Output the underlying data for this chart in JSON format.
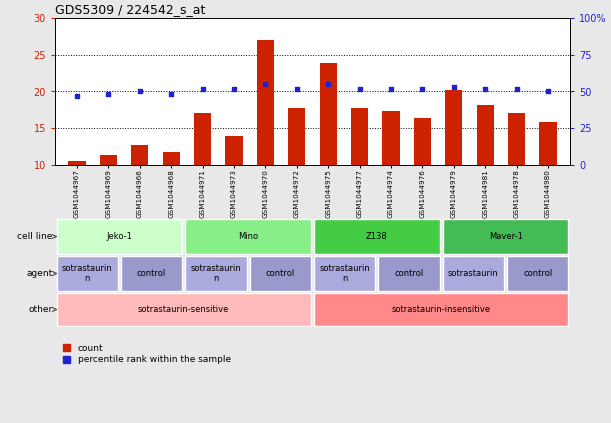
{
  "title": "GDS5309 / 224542_s_at",
  "samples": [
    "GSM1044967",
    "GSM1044969",
    "GSM1044966",
    "GSM1044968",
    "GSM1044971",
    "GSM1044973",
    "GSM1044970",
    "GSM1044972",
    "GSM1044975",
    "GSM1044977",
    "GSM1044974",
    "GSM1044976",
    "GSM1044979",
    "GSM1044981",
    "GSM1044978",
    "GSM1044980"
  ],
  "bar_values": [
    10.5,
    11.3,
    12.7,
    11.8,
    17.1,
    13.9,
    27.0,
    17.7,
    23.9,
    17.7,
    17.3,
    16.4,
    20.2,
    18.2,
    17.1,
    15.8
  ],
  "dot_values": [
    47,
    48,
    50,
    48,
    52,
    52,
    55,
    52,
    55,
    52,
    52,
    52,
    53,
    52,
    52,
    50
  ],
  "ylim_left": [
    10,
    30
  ],
  "ylim_right": [
    0,
    100
  ],
  "yticks_left": [
    10,
    15,
    20,
    25,
    30
  ],
  "yticks_right": [
    0,
    25,
    50,
    75,
    100
  ],
  "ytick_labels_left": [
    "10",
    "15",
    "20",
    "25",
    "30"
  ],
  "ytick_labels_right": [
    "0",
    "25",
    "50",
    "75",
    "100%"
  ],
  "bar_color": "#CC2200",
  "dot_color": "#2222CC",
  "fig_bg_color": "#E8E8E8",
  "plot_bg_color": "#FFFFFF",
  "cell_line_row": {
    "label": "cell line",
    "groups": [
      {
        "text": "Jeko-1",
        "start": 0,
        "end": 4,
        "color": "#CCFFCC"
      },
      {
        "text": "Mino",
        "start": 4,
        "end": 8,
        "color": "#88EE88"
      },
      {
        "text": "Z138",
        "start": 8,
        "end": 12,
        "color": "#44CC44"
      },
      {
        "text": "Maver-1",
        "start": 12,
        "end": 16,
        "color": "#44BB55"
      }
    ]
  },
  "agent_row": {
    "label": "agent",
    "groups": [
      {
        "text": "sotrastaurin\nn",
        "start": 0,
        "end": 2,
        "color": "#AAAADD"
      },
      {
        "text": "control",
        "start": 2,
        "end": 4,
        "color": "#9999CC"
      },
      {
        "text": "sotrastaurin\nn",
        "start": 4,
        "end": 6,
        "color": "#AAAADD"
      },
      {
        "text": "control",
        "start": 6,
        "end": 8,
        "color": "#9999CC"
      },
      {
        "text": "sotrastaurin\nn",
        "start": 8,
        "end": 10,
        "color": "#AAAADD"
      },
      {
        "text": "control",
        "start": 10,
        "end": 12,
        "color": "#9999CC"
      },
      {
        "text": "sotrastaurin",
        "start": 12,
        "end": 14,
        "color": "#AAAADD"
      },
      {
        "text": "control",
        "start": 14,
        "end": 16,
        "color": "#9999CC"
      }
    ]
  },
  "other_row": {
    "label": "other",
    "groups": [
      {
        "text": "sotrastaurin-sensitive",
        "start": 0,
        "end": 8,
        "color": "#FFBBBB"
      },
      {
        "text": "sotrastaurin-insensitive",
        "start": 8,
        "end": 16,
        "color": "#FF8888"
      }
    ]
  },
  "legend_items": [
    {
      "color": "#CC2200",
      "label": "count"
    },
    {
      "color": "#2222CC",
      "label": "percentile rank within the sample"
    }
  ]
}
